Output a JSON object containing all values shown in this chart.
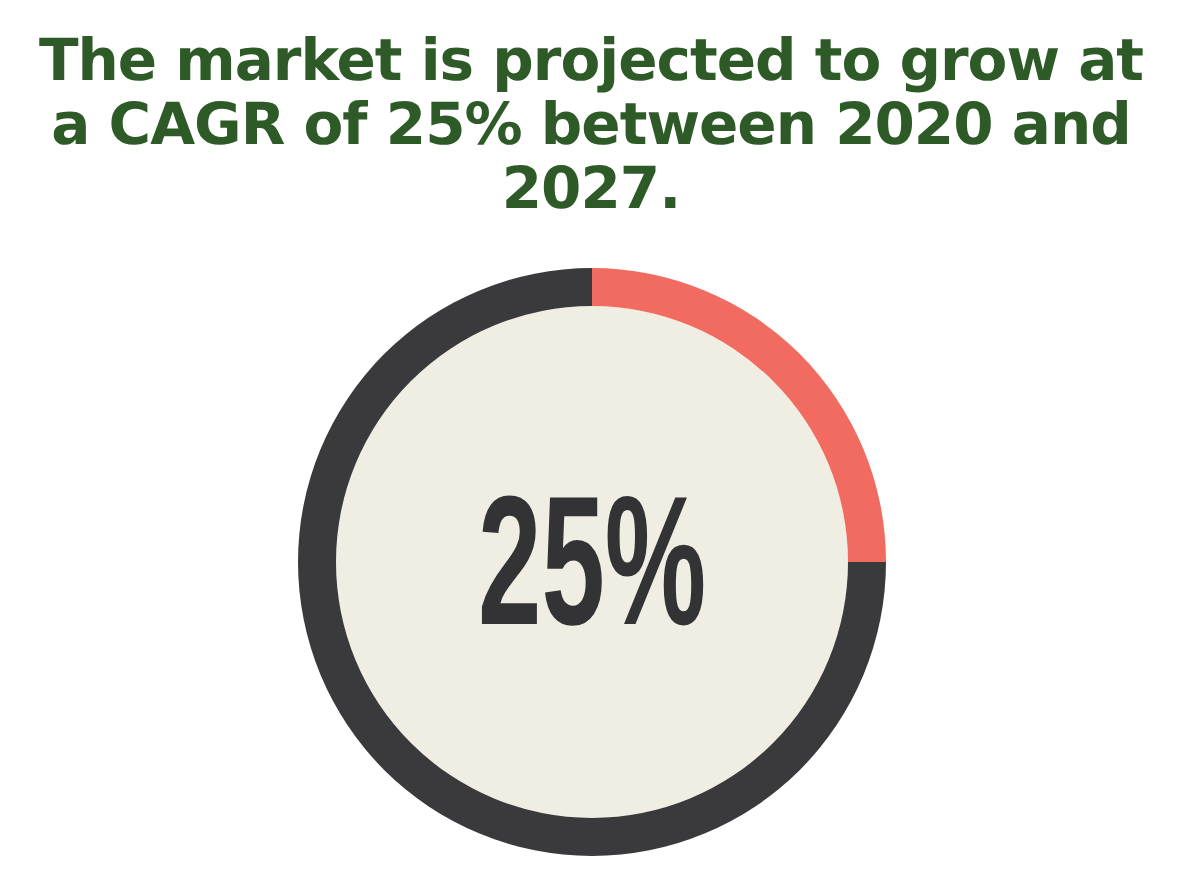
{
  "chart_data": {
    "type": "donut",
    "title": "The market is projected to grow at a CAGR of 25% between 2020 and 2027.",
    "categories": [
      null,
      null
    ],
    "values": [
      25,
      75
    ],
    "colors": [
      "#f26b60",
      "#3a3a3d"
    ],
    "annotations": [
      "25%"
    ]
  }
}
